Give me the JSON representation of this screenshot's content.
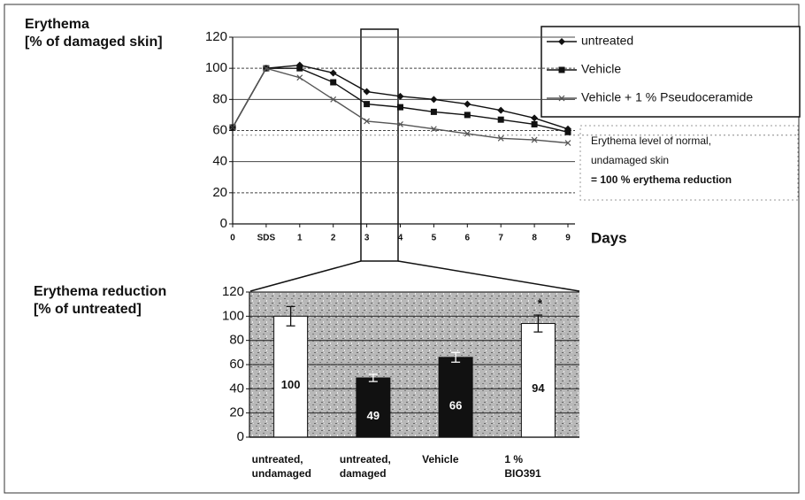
{
  "chart_data": [
    {
      "type": "line",
      "y_label": [
        "Erythema",
        "[% of damaged skin]"
      ],
      "x_label": "Days",
      "categories": [
        "0",
        "SDS",
        "1",
        "2",
        "3",
        "4",
        "5",
        "6",
        "7",
        "8",
        "9"
      ],
      "series": [
        {
          "name": "untreated",
          "color": "#111111",
          "marker": "diamond",
          "values": [
            62,
            100,
            102,
            97,
            85,
            82,
            80,
            77,
            73,
            68,
            61
          ]
        },
        {
          "name": "Vehicle",
          "color": "#111111",
          "marker": "square",
          "values": [
            62,
            100,
            100,
            91,
            77,
            75,
            72,
            70,
            67,
            64,
            59
          ]
        },
        {
          "name": "Vehicle +  1 % Pseudoceramide",
          "color": "#555555",
          "marker": "cross",
          "values": [
            62,
            100,
            94,
            80,
            66,
            64,
            61,
            58,
            55,
            54,
            52
          ]
        }
      ],
      "reference_line": 57,
      "annotations": [
        "Erythema level of normal,",
        "undamaged skin",
        "= 100 % erythema reduction"
      ],
      "ylim": [
        0,
        120
      ],
      "yticks": [
        0,
        20,
        40,
        60,
        80,
        100,
        120
      ],
      "grid": true
    },
    {
      "type": "bar",
      "y_label": [
        "Erythema reduction",
        "[% of untreated]"
      ],
      "categories": [
        [
          "untreated,",
          "undamaged"
        ],
        [
          "untreated,",
          "damaged"
        ],
        [
          "Vehicle"
        ],
        [
          "1 %",
          "BIO391"
        ]
      ],
      "values": [
        100,
        49,
        66,
        94
      ],
      "errors": [
        8,
        3,
        4,
        7
      ],
      "colors": [
        "#ffffff",
        "#111111",
        "#111111",
        "#ffffff"
      ],
      "annotations": [
        "*"
      ],
      "ylim": [
        0,
        120
      ],
      "yticks": [
        0,
        20,
        40,
        60,
        80,
        100,
        120
      ],
      "grid": true
    }
  ]
}
